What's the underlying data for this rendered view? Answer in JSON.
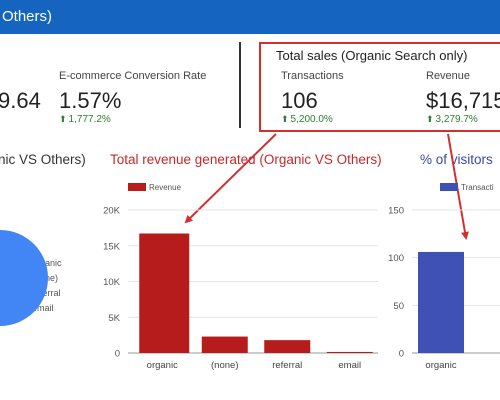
{
  "header": {
    "title": "Others)"
  },
  "metrics_left": {
    "partial_value": "9.64",
    "conversion_label": "E-commerce Conversion Rate",
    "conversion_value": "1.57%",
    "conversion_change": "1,777.2%"
  },
  "sales_box": {
    "title": "Total sales (Organic Search only)",
    "transactions_label": "Transactions",
    "transactions_value": "106",
    "transactions_change": "5,200.0%",
    "revenue_label": "Revenue",
    "revenue_value": "$16,715",
    "revenue_change": "3,279.7%"
  },
  "pie_section": {
    "title": "nic VS Others)",
    "legend": [
      {
        "label": "organic",
        "color": "#4285f4"
      },
      {
        "label": "(none)",
        "color": "#f4b400"
      },
      {
        "label": "referral",
        "color": "#db4437"
      },
      {
        "label": "email",
        "color": "#0f9d58"
      }
    ]
  },
  "colors": {
    "accent": "#1565c0",
    "highlight": "#d32f2f",
    "positive": "#2e7d32",
    "bar_red": "#b71c1c",
    "bar_blue": "#3f51b5"
  },
  "chart_data": [
    {
      "type": "bar",
      "title": "Total revenue generated (Organic VS Others)",
      "legend": [
        "Revenue"
      ],
      "categories": [
        "organic",
        "(none)",
        "referral",
        "email"
      ],
      "series": [
        {
          "name": "Revenue",
          "values": [
            16715,
            2300,
            1800,
            150
          ]
        }
      ],
      "ylim": [
        0,
        20000
      ],
      "yticks": [
        0,
        5000,
        10000,
        15000,
        20000
      ],
      "yticklabels": [
        "0",
        "5K",
        "10K",
        "15K",
        "20K"
      ],
      "grid": true,
      "legend_position": "top-left"
    },
    {
      "type": "bar",
      "title": "% of visitors",
      "legend": [
        "Transacti"
      ],
      "categories": [
        "organic"
      ],
      "series": [
        {
          "name": "Transacti",
          "values": [
            106
          ]
        }
      ],
      "ylim": [
        0,
        150
      ],
      "yticks": [
        0,
        50,
        100,
        150
      ],
      "yticklabels": [
        "0",
        "50",
        "100",
        "150"
      ],
      "grid": true,
      "legend_position": "top-left"
    }
  ]
}
